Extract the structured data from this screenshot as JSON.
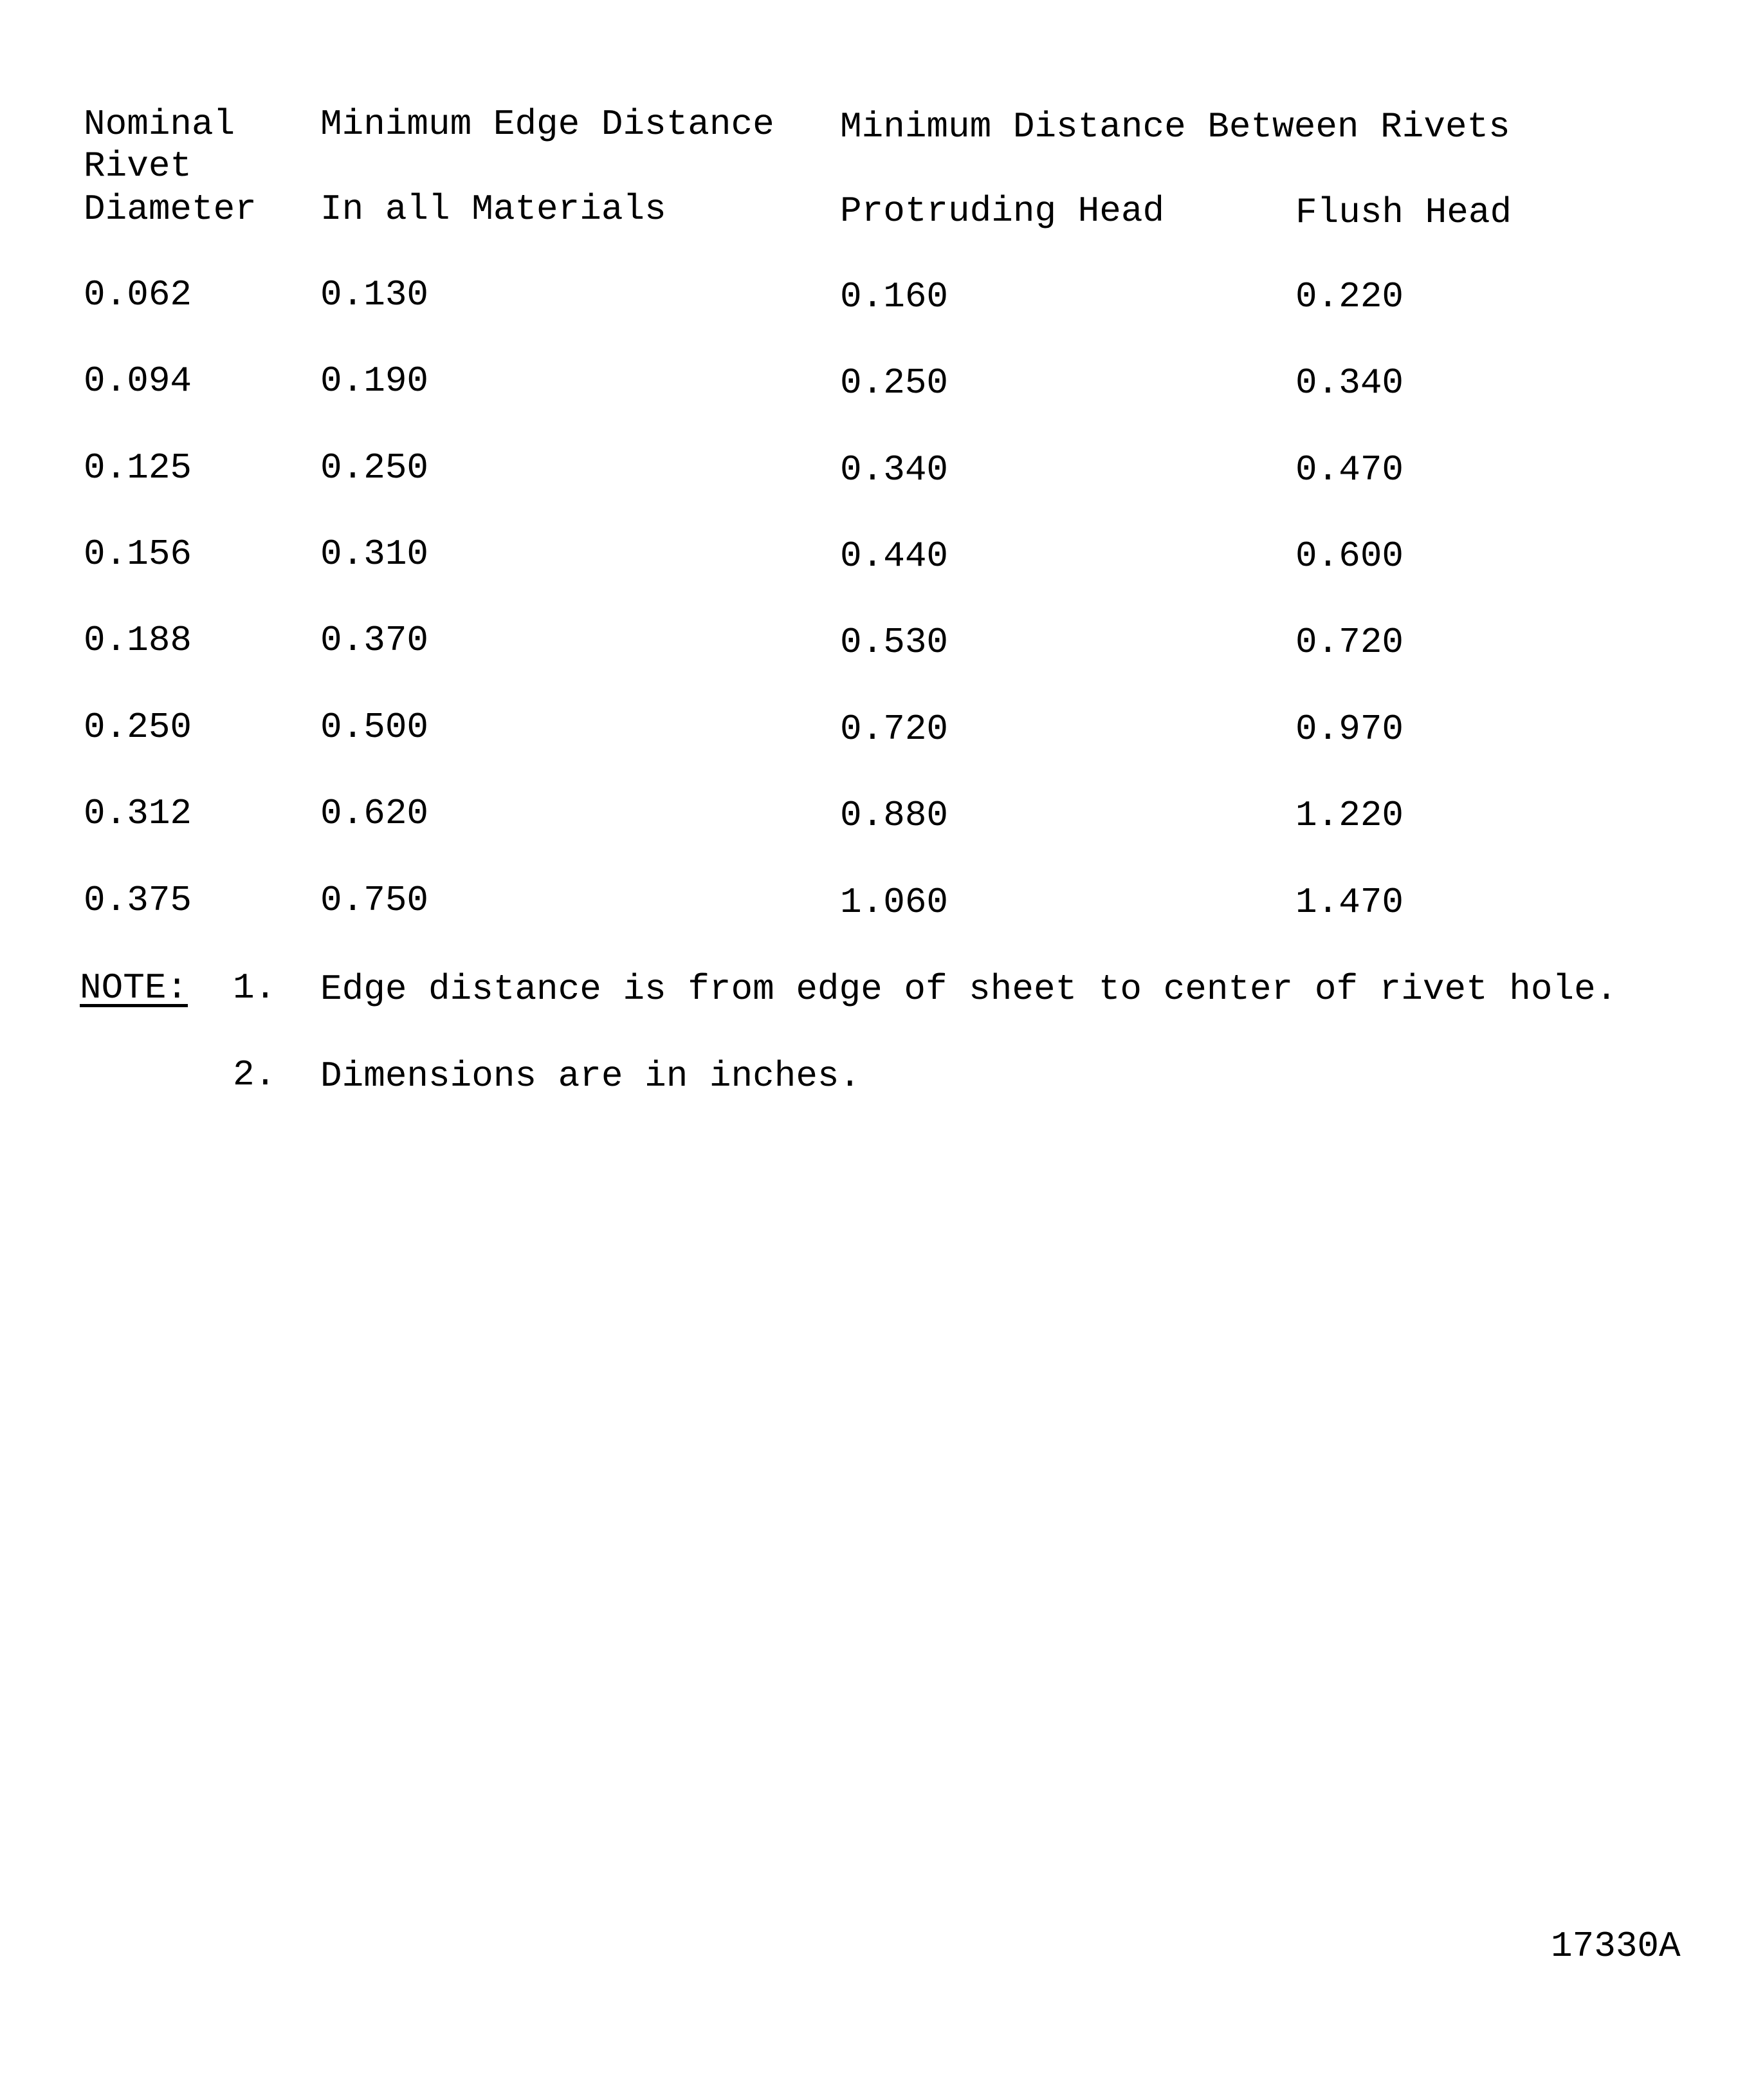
{
  "table": {
    "headers": {
      "col1": [
        "Nominal",
        "Rivet",
        "Diameter"
      ],
      "col2_top": "Minimum Edge Distance",
      "col2_sub": "In all Materials",
      "group_top": "Minimum Distance Between Rivets",
      "col3_sub": "Protruding Head",
      "col4_sub": "Flush Head"
    },
    "rows": [
      [
        "0.062",
        "0.130",
        "0.160",
        "0.220"
      ],
      [
        "0.094",
        "0.190",
        "0.250",
        "0.340"
      ],
      [
        "0.125",
        "0.250",
        "0.340",
        "0.470"
      ],
      [
        "0.156",
        "0.310",
        "0.440",
        "0.600"
      ],
      [
        "0.188",
        "0.370",
        "0.530",
        "0.720"
      ],
      [
        "0.250",
        "0.500",
        "0.720",
        "0.970"
      ],
      [
        "0.312",
        "0.620",
        "0.880",
        "1.220"
      ],
      [
        "0.375",
        "0.750",
        "1.060",
        "1.470"
      ]
    ]
  },
  "notes": {
    "label": "NOTE:",
    "items": [
      {
        "num": "1.",
        "text": "Edge distance is from edge of sheet to center of rivet hole."
      },
      {
        "num": "2.",
        "text": "Dimensions are in inches."
      }
    ]
  },
  "figure_id": "17330A"
}
